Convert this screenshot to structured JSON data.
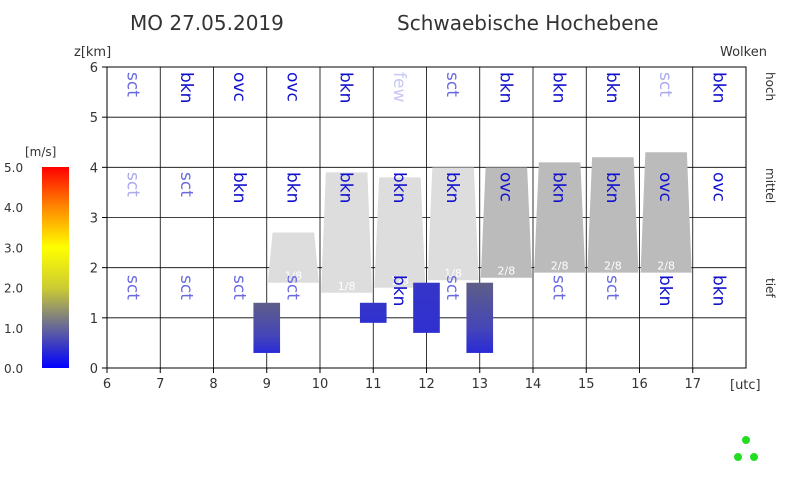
{
  "header": {
    "date": "MO 27.05.2019",
    "region": "Schwaebische Hochebene"
  },
  "labels": {
    "ylabel": "z[km]",
    "wolken": "Wolken",
    "xunit": "[utc]",
    "colorbar_unit": "[m/s]"
  },
  "levels": {
    "high": "hoch",
    "mid": "mittel",
    "low": "tief"
  },
  "colors": {
    "strong": "#1010cc",
    "light": "#6a6ae0",
    "faint": "#aaaaee",
    "very_faint": "#c8c8f4",
    "cloud_light": "#dddddd",
    "cloud_dark": "#bbbbbb"
  },
  "chart_data": {
    "type": "cloud-meteogram",
    "xlim": [
      6,
      18
    ],
    "ylim": [
      0,
      6
    ],
    "x_ticks": [
      6,
      7,
      8,
      9,
      10,
      11,
      12,
      13,
      14,
      15,
      16,
      17
    ],
    "y_ticks": [
      0,
      1,
      2,
      3,
      4,
      5,
      6
    ],
    "grid": true,
    "cloud_codes": {
      "high": [
        {
          "hour": 6,
          "code": "sct",
          "tone": "light"
        },
        {
          "hour": 7,
          "code": "bkn",
          "tone": "strong"
        },
        {
          "hour": 8,
          "code": "ovc",
          "tone": "strong"
        },
        {
          "hour": 9,
          "code": "ovc",
          "tone": "strong"
        },
        {
          "hour": 10,
          "code": "bkn",
          "tone": "strong"
        },
        {
          "hour": 11,
          "code": "few",
          "tone": "very_faint"
        },
        {
          "hour": 12,
          "code": "sct",
          "tone": "light"
        },
        {
          "hour": 13,
          "code": "bkn",
          "tone": "strong"
        },
        {
          "hour": 14,
          "code": "bkn",
          "tone": "strong"
        },
        {
          "hour": 15,
          "code": "bkn",
          "tone": "strong"
        },
        {
          "hour": 16,
          "code": "sct",
          "tone": "faint"
        },
        {
          "hour": 17,
          "code": "bkn",
          "tone": "strong"
        }
      ],
      "mid": [
        {
          "hour": 6,
          "code": "sct",
          "tone": "faint"
        },
        {
          "hour": 7,
          "code": "sct",
          "tone": "light"
        },
        {
          "hour": 8,
          "code": "bkn",
          "tone": "strong"
        },
        {
          "hour": 9,
          "code": "bkn",
          "tone": "strong"
        },
        {
          "hour": 10,
          "code": "bkn",
          "tone": "strong"
        },
        {
          "hour": 11,
          "code": "bkn",
          "tone": "strong"
        },
        {
          "hour": 12,
          "code": "bkn",
          "tone": "strong"
        },
        {
          "hour": 13,
          "code": "ovc",
          "tone": "strong"
        },
        {
          "hour": 14,
          "code": "bkn",
          "tone": "strong"
        },
        {
          "hour": 15,
          "code": "bkn",
          "tone": "strong"
        },
        {
          "hour": 16,
          "code": "ovc",
          "tone": "strong"
        },
        {
          "hour": 17,
          "code": "ovc",
          "tone": "strong"
        }
      ],
      "low": [
        {
          "hour": 6,
          "code": "sct",
          "tone": "light"
        },
        {
          "hour": 7,
          "code": "sct",
          "tone": "light"
        },
        {
          "hour": 8,
          "code": "sct",
          "tone": "light"
        },
        {
          "hour": 9,
          "code": "sct",
          "tone": "light"
        },
        {
          "hour": 10,
          "code": "",
          "tone": "light"
        },
        {
          "hour": 11,
          "code": "bkn",
          "tone": "strong"
        },
        {
          "hour": 12,
          "code": "sct",
          "tone": "light"
        },
        {
          "hour": 13,
          "code": "",
          "tone": "light"
        },
        {
          "hour": 14,
          "code": "sct",
          "tone": "light"
        },
        {
          "hour": 15,
          "code": "sct",
          "tone": "light"
        },
        {
          "hour": 16,
          "code": "bkn",
          "tone": "strong"
        },
        {
          "hour": 17,
          "code": "bkn",
          "tone": "strong"
        }
      ]
    },
    "convective_clouds": [
      {
        "hour": 9,
        "base": 1.7,
        "top": 2.7,
        "coverage": "1/8",
        "tone": "cloud_light"
      },
      {
        "hour": 10,
        "base": 1.5,
        "top": 3.9,
        "coverage": "1/8",
        "tone": "cloud_light"
      },
      {
        "hour": 11,
        "base": 1.6,
        "top": 3.8,
        "coverage": "1/8",
        "tone": "cloud_light"
      },
      {
        "hour": 12,
        "base": 1.75,
        "top": 4.0,
        "coverage": "1/8",
        "tone": "cloud_light"
      },
      {
        "hour": 13,
        "base": 1.8,
        "top": 4.0,
        "coverage": "2/8",
        "tone": "cloud_dark"
      },
      {
        "hour": 14,
        "base": 1.9,
        "top": 4.1,
        "coverage": "2/8",
        "tone": "cloud_dark"
      },
      {
        "hour": 15,
        "base": 1.9,
        "top": 4.2,
        "coverage": "2/8",
        "tone": "cloud_dark"
      },
      {
        "hour": 16,
        "base": 1.9,
        "top": 4.3,
        "coverage": "2/8",
        "tone": "cloud_dark"
      }
    ],
    "updraft_bars": [
      {
        "hour": 9,
        "bottom": 0.3,
        "top": 1.3,
        "speed": 1.2
      },
      {
        "hour": 11,
        "bottom": 0.9,
        "top": 1.3,
        "speed": 0.6
      },
      {
        "hour": 12,
        "bottom": 0.7,
        "top": 1.7,
        "speed": 0.5
      },
      {
        "hour": 13,
        "bottom": 0.3,
        "top": 1.7,
        "speed": 1.4
      }
    ],
    "colorbar": {
      "min": 0,
      "max": 5,
      "ticks": [
        "0.0",
        "1.0",
        "2.0",
        "3.0",
        "4.0",
        "5.0"
      ]
    }
  }
}
